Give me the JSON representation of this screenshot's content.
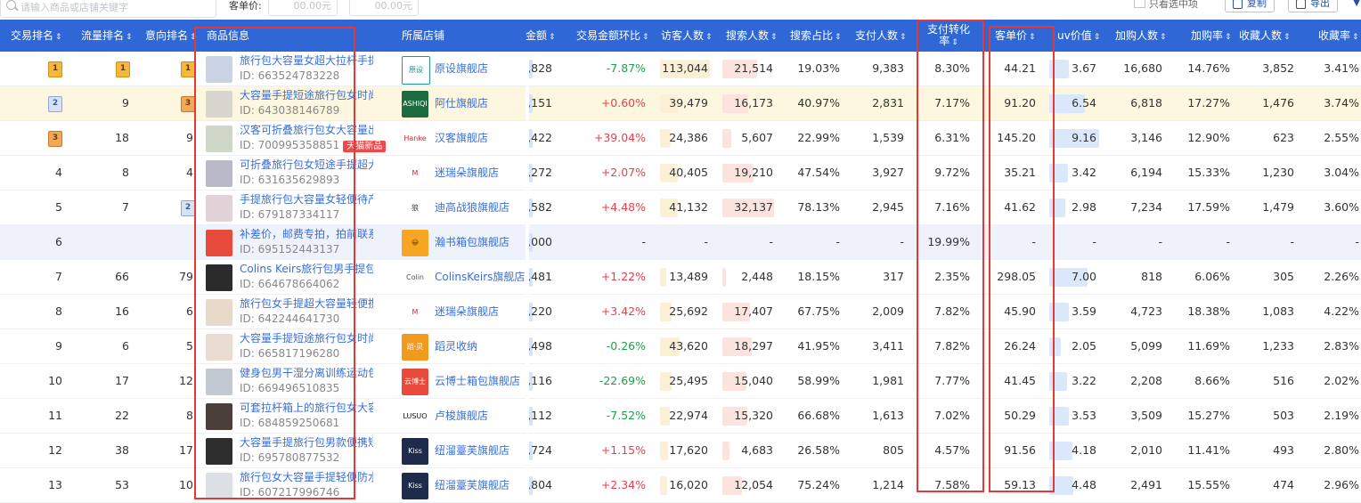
{
  "toolbar": {
    "search_placeholder": "请输入商品或店铺关键字",
    "price_label": "客单价:",
    "price_min": "00.00元",
    "price_max": "00.00元",
    "only_selected": "只看选中项",
    "copy_label": "复制",
    "export_label": "导出"
  },
  "columns": [
    "交易排名",
    "流量排名",
    "意向排名",
    "商品信息",
    "所属店铺",
    "金额",
    "交易金额环比",
    "访客人数",
    "搜索人数",
    "搜索占比",
    "支付人数",
    "支付转化率",
    "客单价",
    "uv价值",
    "加购人数",
    "加购率",
    "收藏人数",
    "收藏率"
  ],
  "rows": [
    {
      "trade": "1",
      "flow": "1",
      "intent": "1",
      "name": "旅行包大容量女超大拉杆手提出...",
      "id": "ID: 663524783228",
      "shop": "原设旗舰店",
      "amount": ",828",
      "mom": "-7.87%",
      "visitors": "113,044",
      "search": "21,514",
      "search_ratio": "19.03%",
      "pay": "9,383",
      "conv": "8.30%",
      "aov": "44.21",
      "uv": "3.67",
      "cart": "16,680",
      "cart_rate": "14.76%",
      "fav": "3,852",
      "fav_rate": "3.41%"
    },
    {
      "trade": "2",
      "flow": "9",
      "intent": "3",
      "name": "大容量手提短途旅行包女时尚轻...",
      "id": "ID: 643038146789",
      "shop": "阿仕旗舰店",
      "amount": ",151",
      "mom": "+0.60%",
      "visitors": "39,479",
      "search": "16,173",
      "search_ratio": "40.97%",
      "pay": "2,831",
      "conv": "7.17%",
      "aov": "91.20",
      "uv": "6.54",
      "cart": "6,818",
      "cart_rate": "17.27%",
      "fav": "1,476",
      "fav_rate": "3.74%"
    },
    {
      "trade": "3",
      "flow": "18",
      "intent": "9",
      "name": "汉客可折叠旅行包女大容量出差...",
      "id": "ID: 700995358851",
      "tag": "天猫新品",
      "shop": "汉客旗舰店",
      "amount": ",422",
      "mom": "+39.04%",
      "visitors": "24,386",
      "search": "5,607",
      "search_ratio": "22.99%",
      "pay": "1,539",
      "conv": "6.31%",
      "aov": "145.20",
      "uv": "9.16",
      "cart": "3,146",
      "cart_rate": "12.90%",
      "fav": "623",
      "fav_rate": "2.55%"
    },
    {
      "trade": "4",
      "flow": "8",
      "intent": "4",
      "name": "可折叠旅行包女短途手提超大容...",
      "id": "ID: 631635629893",
      "shop": "迷瑞朵旗舰店",
      "amount": ",272",
      "mom": "+2.07%",
      "visitors": "40,405",
      "search": "19,210",
      "search_ratio": "47.54%",
      "pay": "3,927",
      "conv": "9.72%",
      "aov": "35.21",
      "uv": "3.42",
      "cart": "6,194",
      "cart_rate": "15.33%",
      "fav": "1,230",
      "fav_rate": "3.04%"
    },
    {
      "trade": "5",
      "flow": "7",
      "intent": "2",
      "name": "手提旅行包大容量女轻便待产包...",
      "id": "ID: 679187334117",
      "shop": "迪高战狼旗舰店",
      "amount": ",582",
      "mom": "+4.48%",
      "visitors": "41,132",
      "search": "32,137",
      "search_ratio": "78.13%",
      "pay": "2,945",
      "conv": "7.16%",
      "aov": "41.62",
      "uv": "2.98",
      "cart": "7,234",
      "cart_rate": "17.59%",
      "fav": "1,479",
      "fav_rate": "3.60%"
    },
    {
      "trade": "6",
      "flow": "",
      "intent": "",
      "name": "补差价，邮费专拍，拍前联系客服",
      "id": "ID: 695152443137",
      "shop": "瀚书箱包旗舰店",
      "amount": ",000",
      "mom": "-",
      "visitors": "-",
      "search": "-",
      "search_ratio": "-",
      "pay": "-",
      "conv": "19.99%",
      "aov": "-",
      "uv": "-",
      "cart": "-",
      "cart_rate": "-",
      "fav": "-",
      "fav_rate": "-"
    },
    {
      "trade": "7",
      "flow": "66",
      "intent": "79",
      "name": "Colins Keirs旅行包男手提包干...",
      "id": "ID: 664678664062",
      "shop": "ColinsKeirs旗舰店",
      "amount": ",481",
      "mom": "+1.22%",
      "visitors": "13,489",
      "search": "2,448",
      "search_ratio": "18.15%",
      "pay": "317",
      "conv": "2.35%",
      "aov": "298.05",
      "uv": "7.00",
      "cart": "818",
      "cart_rate": "6.06%",
      "fav": "305",
      "fav_rate": "2.26%"
    },
    {
      "trade": "8",
      "flow": "16",
      "intent": "6",
      "name": "旅行包女手提超大容量轻便携待...",
      "id": "ID: 642244641730",
      "shop": "迷瑞朵旗舰店",
      "amount": ",220",
      "mom": "+3.42%",
      "visitors": "25,692",
      "search": "17,407",
      "search_ratio": "67.75%",
      "pay": "2,009",
      "conv": "7.82%",
      "aov": "45.90",
      "uv": "3.59",
      "cart": "4,723",
      "cart_rate": "18.38%",
      "fav": "1,083",
      "fav_rate": "4.22%"
    },
    {
      "trade": "9",
      "flow": "6",
      "intent": "5",
      "name": "大容量手提短途旅行包女时尚潮...",
      "id": "ID: 665817196280",
      "shop": "蹈灵收纳",
      "amount": ",498",
      "mom": "-0.26%",
      "visitors": "43,620",
      "search": "18,297",
      "search_ratio": "41.95%",
      "pay": "3,411",
      "conv": "7.82%",
      "aov": "26.24",
      "uv": "2.05",
      "cart": "5,099",
      "cart_rate": "11.69%",
      "fav": "1,233",
      "fav_rate": "2.83%"
    },
    {
      "trade": "10",
      "flow": "17",
      "intent": "12",
      "name": "健身包男干湿分离训练运动包手...",
      "id": "ID: 669496510835",
      "shop": "云博士箱包旗舰店",
      "amount": ",116",
      "mom": "-22.69%",
      "visitors": "25,495",
      "search": "15,040",
      "search_ratio": "58.99%",
      "pay": "1,981",
      "conv": "7.77%",
      "aov": "41.45",
      "uv": "3.22",
      "cart": "2,208",
      "cart_rate": "8.66%",
      "fav": "516",
      "fav_rate": "2.02%"
    },
    {
      "trade": "11",
      "flow": "22",
      "intent": "8",
      "name": "可套拉杆箱上的旅行包女大容量...",
      "id": "ID: 684859250681",
      "shop": "卢梭旗舰店",
      "amount": ",112",
      "mom": "-7.52%",
      "visitors": "22,974",
      "search": "15,320",
      "search_ratio": "66.68%",
      "pay": "1,613",
      "conv": "7.02%",
      "aov": "50.29",
      "uv": "3.53",
      "cart": "3,509",
      "cart_rate": "15.27%",
      "fav": "503",
      "fav_rate": "2.19%"
    },
    {
      "trade": "12",
      "flow": "38",
      "intent": "17",
      "name": "大容量手提旅行包男款便携短途...",
      "id": "ID: 695780877532",
      "shop": "纽溜薹芙旗舰店",
      "amount": ",724",
      "mom": "+1.15%",
      "visitors": "17,620",
      "search": "4,683",
      "search_ratio": "26.58%",
      "pay": "805",
      "conv": "4.57%",
      "aov": "91.56",
      "uv": "4.18",
      "cart": "2,010",
      "cart_rate": "11.41%",
      "fav": "493",
      "fav_rate": "2.80%"
    },
    {
      "trade": "13",
      "flow": "53",
      "intent": "10",
      "name": "旅行包女大容量手提轻便防水行...",
      "id": "ID: 607217996746",
      "shop": "纽溜薹芙旗舰店",
      "amount": ",804",
      "mom": "+2.34%",
      "visitors": "16,020",
      "search": "12,054",
      "search_ratio": "75.24%",
      "pay": "1,214",
      "conv": "7.58%",
      "aov": "59.13",
      "uv": "4.48",
      "cart": "2,491",
      "cart_rate": "15.55%",
      "fav": "474",
      "fav_rate": "2.96%"
    }
  ],
  "shop_logos": [
    "原设",
    "ASHIQI",
    "Hanke",
    "M",
    "狼",
    "😀",
    "Colin Keirs",
    "M",
    "蹈·灵",
    "云博士",
    "LUSUO",
    "Kiss",
    "Kiss"
  ],
  "colors": {
    "header": "#2f67d6",
    "link": "#3a6fd8",
    "up": "#e8414b",
    "down": "#1aa34a",
    "highlight": "#fdf7df",
    "annotation": "#e53935"
  }
}
